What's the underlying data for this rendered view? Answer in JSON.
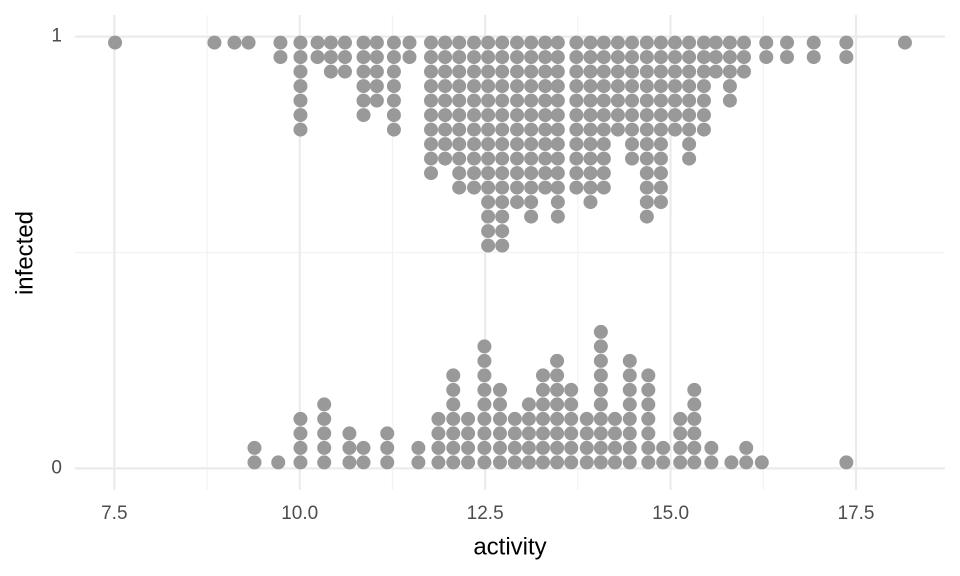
{
  "chart_data": {
    "type": "dotplot",
    "xlabel": "activity",
    "ylabel": "infected",
    "xlim": [
      6.97,
      18.7
    ],
    "ylim": [
      -0.05,
      1.05
    ],
    "xticks": [
      7.5,
      {
        "value": 10,
        "label": "10.0"
      },
      12.5,
      {
        "value": 15,
        "label": "15.0"
      },
      17.5
    ],
    "yticks": [
      0,
      1
    ],
    "minor_xticks": [
      8.75,
      11.25,
      13.75,
      16.25
    ],
    "minor_yticks": [
      0.5
    ],
    "grid": true,
    "color": "#999999",
    "stacks": [
      {
        "y": 1,
        "direction": "down",
        "x": [
          7.51,
          8.85,
          9.12,
          9.31,
          9.74,
          10.01,
          10.24,
          10.42,
          10.61,
          10.86,
          11.04,
          11.27,
          11.48,
          11.77,
          11.96,
          12.15,
          12.35,
          12.54,
          12.73,
          12.93,
          13.12,
          13.31,
          13.48,
          13.73,
          13.92,
          14.1,
          14.29,
          14.48,
          14.68,
          14.87,
          15.06,
          15.25,
          15.45,
          15.61,
          15.8,
          15.99,
          16.29,
          16.57,
          16.93,
          17.37,
          18.16
        ],
        "counts": [
          1,
          1,
          1,
          1,
          2,
          7,
          2,
          3,
          3,
          6,
          5,
          7,
          2,
          10,
          9,
          11,
          11,
          15,
          15,
          12,
          13,
          11,
          13,
          11,
          12,
          11,
          7,
          9,
          13,
          12,
          7,
          9,
          7,
          3,
          5,
          3,
          2,
          2,
          2,
          2,
          1
        ]
      },
      {
        "y": 0,
        "direction": "up",
        "x": [
          9.39,
          9.71,
          10.01,
          10.33,
          10.67,
          10.86,
          11.18,
          11.6,
          11.87,
          12.07,
          12.27,
          12.49,
          12.7,
          12.9,
          13.09,
          13.28,
          13.47,
          13.66,
          13.87,
          14.06,
          14.25,
          14.45,
          14.7,
          14.9,
          15.13,
          15.32,
          15.55,
          15.82,
          16.02,
          16.23,
          17.37
        ],
        "counts": [
          2,
          1,
          4,
          5,
          3,
          2,
          3,
          2,
          4,
          7,
          4,
          9,
          6,
          4,
          5,
          7,
          8,
          6,
          4,
          10,
          4,
          8,
          7,
          2,
          4,
          6,
          2,
          1,
          2,
          1,
          1
        ]
      }
    ]
  }
}
